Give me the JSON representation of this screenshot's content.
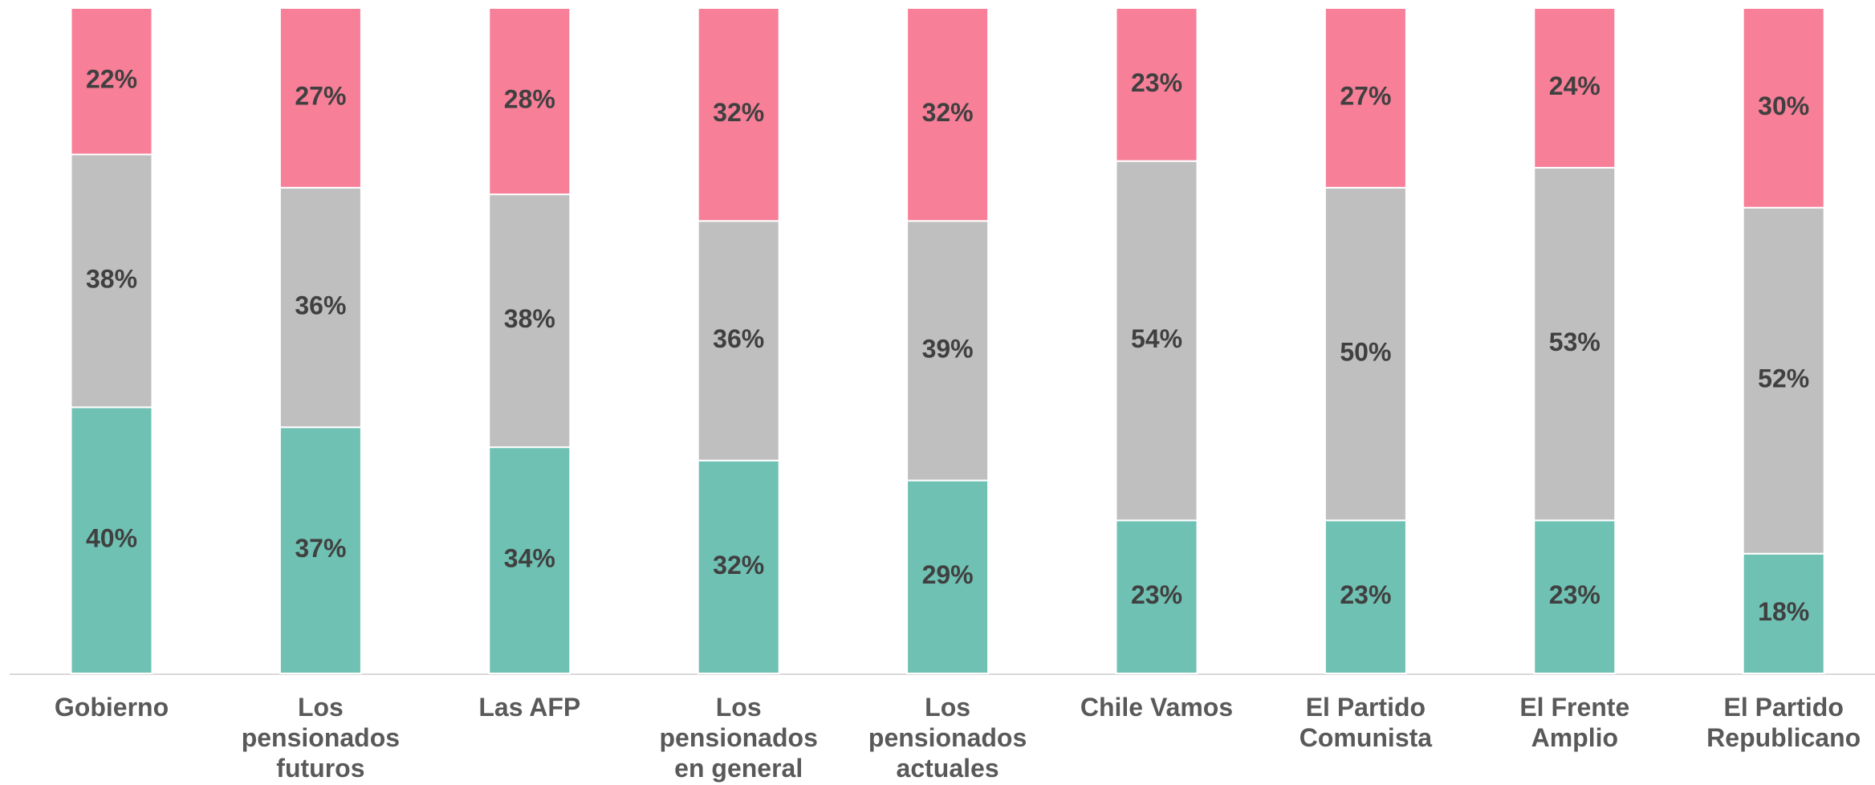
{
  "chart_data": {
    "type": "stacked-bar",
    "categories": [
      "Gobierno",
      "Los pensionados futuros",
      "Las AFP",
      "Los pensionados en general",
      "Los pensionados actuales",
      "Chile Vamos",
      "El Partido Comunista",
      "El Frente Amplio",
      "El Partido Republicano"
    ],
    "series": [
      {
        "color": "#6fc1b3",
        "values": [
          40,
          37,
          34,
          32,
          29,
          23,
          23,
          23,
          18
        ],
        "value_labels": [
          "40%",
          "37%",
          "34%",
          "32%",
          "29%",
          "23%",
          "23%",
          "23%",
          "18%"
        ]
      },
      {
        "color": "#bfbfbf",
        "values": [
          38,
          36,
          38,
          36,
          39,
          54,
          50,
          53,
          52
        ],
        "value_labels": [
          "38%",
          "36%",
          "38%",
          "36%",
          "39%",
          "54%",
          "50%",
          "53%",
          "52%"
        ]
      },
      {
        "color": "#f77f98",
        "values": [
          22,
          27,
          28,
          32,
          32,
          23,
          27,
          24,
          30
        ],
        "value_labels": [
          "22%",
          "27%",
          "28%",
          "32%",
          "32%",
          "23%",
          "27%",
          "24%",
          "30%"
        ]
      }
    ],
    "ylim": [
      0,
      100
    ]
  }
}
